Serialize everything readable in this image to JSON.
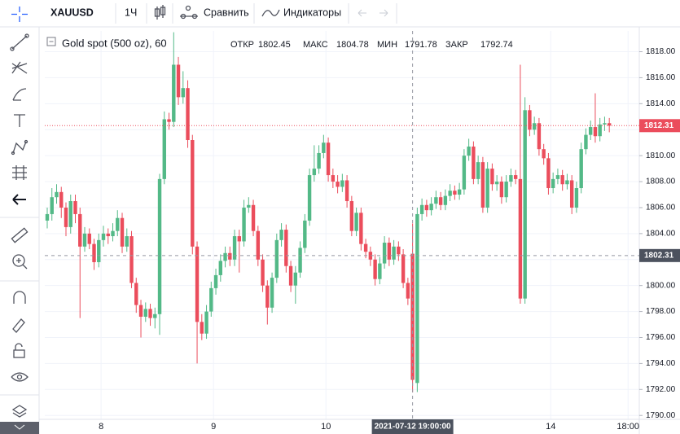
{
  "toolbar": {
    "symbol": "XAUUSD",
    "interval": "1Ч",
    "compare": "Сравнить",
    "indicators": "Индикаторы"
  },
  "chart_data": {
    "type": "candlestick",
    "title": "Gold spot (500 oz), 60",
    "legend": {
      "open_label": "ОТКР",
      "open": 1802.45,
      "high_label": "МАКС",
      "high": 1804.78,
      "low_label": "МИН",
      "low": 1791.78,
      "close_label": "ЗАКР",
      "close": 1792.74
    },
    "crosshair": {
      "price": 1802.31,
      "time": "2021-07-12 19:00:00"
    },
    "up_color": "#53b987",
    "down_color": "#eb4d5c",
    "grid": true,
    "open": [
      1805.0,
      1805.5,
      1806.8,
      1807.2,
      1806.0,
      1804.5,
      1806.5,
      1805.5,
      1803.0,
      1804.0,
      1803.2,
      1801.8,
      1803.5,
      1804.0,
      1803.8,
      1804.2,
      1805.2,
      1803.0,
      1803.8,
      1800.2,
      1798.5,
      1797.6,
      1798.2,
      1797.5,
      1797.8,
      1808.2,
      1812.8,
      1812.6,
      1817.0,
      1814.5,
      1815.2,
      1811.2,
      1803.0,
      1797.2,
      1796.3,
      1798.0,
      1799.8,
      1800.8,
      1801.9,
      1802.5,
      1802.0,
      1803.8,
      1803.4,
      1806.0,
      1806.2,
      1804.2,
      1802.0,
      1800.0,
      1798.3,
      1800.6,
      1803.5,
      1804.3,
      1801.5,
      1800.0,
      1801.0,
      1802.9,
      1805.0,
      1808.5,
      1809.0,
      1810.2,
      1811.0,
      1808.5,
      1808.0,
      1807.6,
      1808.1,
      1806.5,
      1804.2,
      1805.6,
      1803.2,
      1802.6,
      1802.0,
      1800.5,
      1801.7,
      1803.3,
      1802.0,
      1803.0,
      1802.4,
      1800.2,
      1802.45,
      1792.5,
      1805.5,
      1806.2,
      1805.8,
      1806.3,
      1806.8,
      1806.2,
      1806.9,
      1807.3,
      1807.0,
      1807.4,
      1810.0,
      1810.7,
      1808.2,
      1809.5,
      1806.0,
      1809.0,
      1807.8,
      1808.0,
      1806.8,
      1808.0,
      1808.5,
      1808.2,
      1799.0,
      1813.5,
      1812.0,
      1812.5,
      1810.5,
      1809.8,
      1807.5,
      1808.2,
      1808.5,
      1807.8,
      1808.1,
      1806.0,
      1807.5,
      1810.5,
      1811.6,
      1812.2,
      1811.5,
      1812.4,
      1812.5
    ],
    "high": [
      1806.0,
      1807.5,
      1807.8,
      1807.6,
      1806.4,
      1807.0,
      1807.0,
      1806.0,
      1804.5,
      1804.4,
      1803.6,
      1804.0,
      1804.6,
      1804.4,
      1804.8,
      1805.8,
      1805.6,
      1804.4,
      1804.2,
      1800.6,
      1798.9,
      1798.7,
      1798.6,
      1798.3,
      1808.6,
      1813.4,
      1813.3,
      1819.5,
      1817.6,
      1816.5,
      1815.8,
      1811.6,
      1803.4,
      1797.8,
      1798.5,
      1800.3,
      1801.3,
      1802.4,
      1803.0,
      1803.0,
      1804.3,
      1804.3,
      1806.6,
      1806.8,
      1806.6,
      1804.6,
      1802.4,
      1800.4,
      1801.0,
      1804.0,
      1804.8,
      1804.7,
      1801.9,
      1801.5,
      1803.4,
      1805.5,
      1809.0,
      1810.8,
      1810.8,
      1811.6,
      1811.4,
      1809.0,
      1808.5,
      1808.6,
      1808.5,
      1806.9,
      1806.0,
      1806.0,
      1803.6,
      1803.0,
      1802.4,
      1802.2,
      1803.8,
      1803.7,
      1803.5,
      1803.4,
      1802.8,
      1800.6,
      1804.78,
      1806.0,
      1806.7,
      1806.6,
      1806.8,
      1807.3,
      1807.2,
      1807.4,
      1807.8,
      1807.7,
      1807.9,
      1810.5,
      1811.3,
      1811.1,
      1810.0,
      1809.9,
      1809.5,
      1809.4,
      1808.5,
      1808.4,
      1808.5,
      1809.0,
      1808.9,
      1817.0,
      1814.5,
      1813.9,
      1813.0,
      1812.9,
      1810.9,
      1810.2,
      1808.7,
      1809.0,
      1808.9,
      1808.6,
      1808.5,
      1808.0,
      1811.0,
      1812.1,
      1812.7,
      1814.8,
      1812.9,
      1813.0,
      1812.9
    ],
    "low": [
      1804.4,
      1805.0,
      1806.3,
      1805.2,
      1803.8,
      1804.0,
      1804.8,
      1797.5,
      1802.6,
      1802.8,
      1801.2,
      1801.4,
      1803.0,
      1803.2,
      1803.4,
      1803.8,
      1802.5,
      1802.6,
      1799.8,
      1797.9,
      1796.0,
      1797.2,
      1796.9,
      1796.7,
      1796.2,
      1807.8,
      1812.0,
      1812.2,
      1813.9,
      1814.0,
      1810.6,
      1802.4,
      1794.0,
      1795.8,
      1795.9,
      1797.6,
      1799.3,
      1800.3,
      1801.4,
      1801.5,
      1801.5,
      1801.0,
      1803.0,
      1805.6,
      1803.8,
      1801.5,
      1799.5,
      1797.0,
      1797.9,
      1800.2,
      1803.0,
      1801.0,
      1799.5,
      1798.6,
      1800.6,
      1802.5,
      1804.6,
      1808.0,
      1808.6,
      1809.8,
      1808.0,
      1807.5,
      1807.1,
      1807.2,
      1806.0,
      1803.8,
      1803.8,
      1802.7,
      1802.1,
      1801.5,
      1800.0,
      1800.1,
      1801.3,
      1801.5,
      1801.6,
      1801.9,
      1799.8,
      1798.5,
      1791.78,
      1791.8,
      1805.0,
      1805.3,
      1805.4,
      1805.9,
      1805.8,
      1805.8,
      1806.5,
      1806.6,
      1806.6,
      1807.0,
      1809.6,
      1807.8,
      1807.8,
      1805.6,
      1805.6,
      1807.3,
      1807.3,
      1806.3,
      1806.4,
      1807.6,
      1807.8,
      1798.6,
      1798.6,
      1811.5,
      1811.6,
      1810.0,
      1809.3,
      1807.0,
      1807.1,
      1807.8,
      1807.3,
      1807.4,
      1805.5,
      1805.6,
      1807.1,
      1810.1,
      1811.2,
      1811.0,
      1811.1,
      1811.9,
      1811.8
    ],
    "close": [
      1805.5,
      1806.8,
      1807.2,
      1806.0,
      1804.5,
      1806.5,
      1805.5,
      1803.0,
      1804.0,
      1803.2,
      1801.8,
      1803.5,
      1804.0,
      1803.8,
      1804.2,
      1805.2,
      1803.0,
      1803.8,
      1800.2,
      1798.5,
      1797.6,
      1798.2,
      1797.5,
      1797.8,
      1808.2,
      1812.8,
      1812.6,
      1817.0,
      1814.5,
      1815.2,
      1811.2,
      1803.0,
      1797.2,
      1796.3,
      1798.0,
      1799.8,
      1800.8,
      1801.9,
      1802.5,
      1802.0,
      1803.8,
      1803.4,
      1806.0,
      1806.2,
      1804.2,
      1802.0,
      1800.0,
      1798.3,
      1800.6,
      1803.5,
      1804.3,
      1801.5,
      1800.0,
      1801.0,
      1802.9,
      1805.0,
      1808.5,
      1809.0,
      1810.2,
      1811.0,
      1808.5,
      1808.0,
      1807.6,
      1808.1,
      1806.5,
      1804.2,
      1805.6,
      1803.2,
      1802.6,
      1802.0,
      1800.5,
      1801.7,
      1803.3,
      1802.0,
      1803.0,
      1802.4,
      1800.2,
      1799.0,
      1792.74,
      1805.5,
      1806.2,
      1805.8,
      1806.3,
      1806.8,
      1806.2,
      1806.9,
      1807.3,
      1807.0,
      1807.4,
      1810.0,
      1810.7,
      1808.2,
      1809.5,
      1806.0,
      1809.0,
      1807.8,
      1808.0,
      1806.8,
      1808.0,
      1808.5,
      1808.2,
      1799.0,
      1813.5,
      1812.0,
      1812.5,
      1810.5,
      1809.8,
      1807.5,
      1808.2,
      1808.5,
      1807.8,
      1808.1,
      1806.0,
      1807.5,
      1810.5,
      1811.6,
      1812.2,
      1811.5,
      1812.4,
      1812.5,
      1812.31
    ],
    "xlim": [
      -0.52,
      126.4
    ],
    "xticks": [
      {
        "value": 11.5,
        "label": "8"
      },
      {
        "value": 35.5,
        "label": "9"
      },
      {
        "value": 59.5,
        "label": "10"
      },
      {
        "value": 107.5,
        "label": "14"
      },
      {
        "value": 124,
        "label": "18:00"
      }
    ],
    "ylim": [
      1789.7,
      1819.6
    ],
    "yticks": [
      {
        "value": 1790,
        "label": "1790.00"
      },
      {
        "value": 1792,
        "label": "1792.00"
      },
      {
        "value": 1794,
        "label": "1794.00"
      },
      {
        "value": 1796,
        "label": "1796.00"
      },
      {
        "value": 1798,
        "label": "1798.00"
      },
      {
        "value": 1800,
        "label": "1800.00"
      },
      {
        "value": 1802,
        "label": "1802.00"
      },
      {
        "value": 1804,
        "label": "1804.00"
      },
      {
        "value": 1806,
        "label": "1806.00"
      },
      {
        "value": 1808,
        "label": "1808.00"
      },
      {
        "value": 1810,
        "label": "1810.00"
      },
      {
        "value": 1812,
        "label": "1812.00"
      },
      {
        "value": 1814,
        "label": "1814.00"
      },
      {
        "value": 1816,
        "label": "1816.00"
      },
      {
        "value": 1818,
        "label": "1818.00"
      }
    ]
  }
}
